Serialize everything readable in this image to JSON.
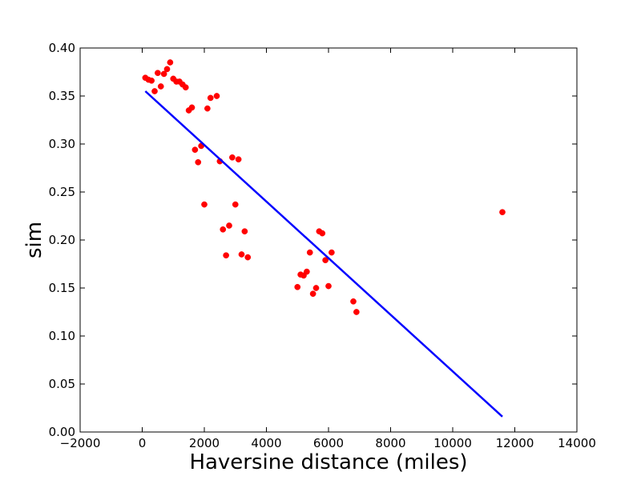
{
  "chart_data": {
    "type": "scatter",
    "title": "",
    "xlabel": "Haversine distance (miles)",
    "ylabel": "sim",
    "xlim": [
      -2000,
      14000
    ],
    "ylim": [
      0.0,
      0.4
    ],
    "xticks": [
      -2000,
      0,
      2000,
      4000,
      6000,
      8000,
      10000,
      12000,
      14000
    ],
    "xtick_labels": [
      "−2000",
      "0",
      "2000",
      "4000",
      "6000",
      "8000",
      "10000",
      "12000",
      "14000"
    ],
    "yticks": [
      0.0,
      0.05,
      0.1,
      0.15,
      0.2,
      0.25,
      0.3,
      0.35,
      0.4
    ],
    "ytick_labels": [
      "0.00",
      "0.05",
      "0.10",
      "0.15",
      "0.20",
      "0.25",
      "0.30",
      "0.35",
      "0.40"
    ],
    "grid": false,
    "legend": "none",
    "series": [
      {
        "kind": "scatter",
        "color": "#ff0000",
        "points": [
          {
            "x": 100,
            "y": 0.369
          },
          {
            "x": 200,
            "y": 0.367
          },
          {
            "x": 300,
            "y": 0.366
          },
          {
            "x": 400,
            "y": 0.355
          },
          {
            "x": 500,
            "y": 0.374
          },
          {
            "x": 600,
            "y": 0.36
          },
          {
            "x": 700,
            "y": 0.373
          },
          {
            "x": 800,
            "y": 0.378
          },
          {
            "x": 900,
            "y": 0.385
          },
          {
            "x": 1000,
            "y": 0.368
          },
          {
            "x": 1100,
            "y": 0.365
          },
          {
            "x": 1200,
            "y": 0.365
          },
          {
            "x": 1300,
            "y": 0.362
          },
          {
            "x": 1400,
            "y": 0.359
          },
          {
            "x": 1500,
            "y": 0.335
          },
          {
            "x": 1600,
            "y": 0.338
          },
          {
            "x": 1700,
            "y": 0.294
          },
          {
            "x": 1800,
            "y": 0.281
          },
          {
            "x": 1900,
            "y": 0.298
          },
          {
            "x": 2000,
            "y": 0.237
          },
          {
            "x": 2100,
            "y": 0.337
          },
          {
            "x": 2200,
            "y": 0.348
          },
          {
            "x": 2400,
            "y": 0.35
          },
          {
            "x": 2500,
            "y": 0.282
          },
          {
            "x": 2600,
            "y": 0.211
          },
          {
            "x": 2700,
            "y": 0.184
          },
          {
            "x": 2800,
            "y": 0.215
          },
          {
            "x": 2900,
            "y": 0.286
          },
          {
            "x": 3000,
            "y": 0.237
          },
          {
            "x": 3100,
            "y": 0.284
          },
          {
            "x": 3200,
            "y": 0.185
          },
          {
            "x": 3300,
            "y": 0.209
          },
          {
            "x": 3400,
            "y": 0.182
          },
          {
            "x": 5000,
            "y": 0.151
          },
          {
            "x": 5100,
            "y": 0.164
          },
          {
            "x": 5200,
            "y": 0.163
          },
          {
            "x": 5300,
            "y": 0.167
          },
          {
            "x": 5400,
            "y": 0.187
          },
          {
            "x": 5500,
            "y": 0.144
          },
          {
            "x": 5600,
            "y": 0.15
          },
          {
            "x": 5700,
            "y": 0.209
          },
          {
            "x": 5800,
            "y": 0.207
          },
          {
            "x": 5900,
            "y": 0.179
          },
          {
            "x": 6000,
            "y": 0.152
          },
          {
            "x": 6100,
            "y": 0.187
          },
          {
            "x": 6800,
            "y": 0.136
          },
          {
            "x": 6900,
            "y": 0.125
          },
          {
            "x": 11600,
            "y": 0.229
          }
        ]
      },
      {
        "kind": "line",
        "color": "#0000ff",
        "points": [
          {
            "x": 100,
            "y": 0.355
          },
          {
            "x": 11600,
            "y": 0.016
          }
        ]
      }
    ]
  }
}
